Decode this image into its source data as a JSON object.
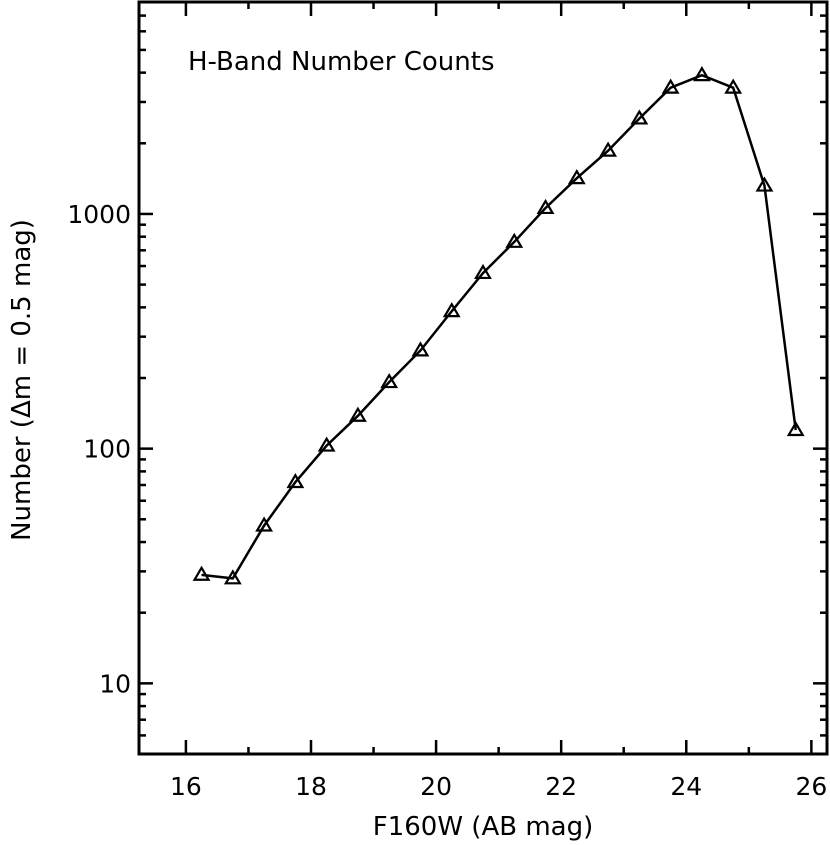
{
  "chart_data": {
    "type": "line",
    "title": "H-Band Number Counts",
    "xlabel": "F160W (AB mag)",
    "ylabel": "Number (Δm = 0.5 mag)",
    "xlim": [
      15.25,
      26.25
    ],
    "ylim": [
      5,
      8000
    ],
    "yscale": "log",
    "xticks": [
      16,
      18,
      20,
      22,
      24,
      26
    ],
    "yticks": [
      10,
      100,
      1000
    ],
    "grid": false,
    "marker": "triangle",
    "series": [
      {
        "x": [
          16.25,
          16.75,
          17.25,
          17.75,
          18.25,
          18.75,
          19.25,
          19.75,
          20.25,
          20.75,
          21.25,
          21.75,
          22.25,
          22.75,
          23.25,
          23.75,
          24.25,
          24.75,
          25.25,
          25.75
        ],
        "values": [
          29,
          28,
          47,
          72,
          103,
          138,
          192,
          262,
          385,
          560,
          760,
          1060,
          1420,
          1860,
          2550,
          3450,
          3900,
          3450,
          1320,
          120
        ]
      }
    ]
  }
}
